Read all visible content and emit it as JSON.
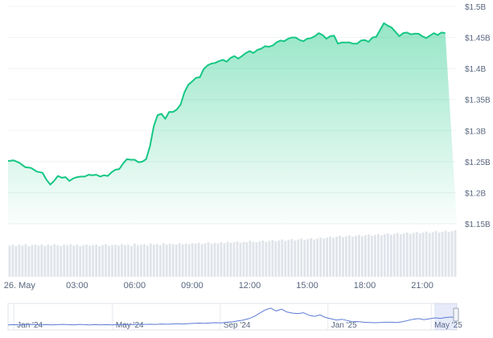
{
  "chart_data": {
    "type": "area",
    "title": "",
    "xlabel": "",
    "ylabel": "",
    "y_ticks": [
      "$1.5B",
      "$1.45B",
      "$1.4B",
      "$1.35B",
      "$1.3B",
      "$1.25B",
      "$1.2B",
      "$1.15B"
    ],
    "y_tick_values": [
      1.5,
      1.45,
      1.4,
      1.35,
      1.3,
      1.25,
      1.2,
      1.15
    ],
    "ylim": [
      1.15,
      1.5
    ],
    "x_ticks": [
      "26. May",
      "03:00",
      "06:00",
      "09:00",
      "12:00",
      "15:00",
      "18:00",
      "21:00"
    ],
    "x_tick_hours": [
      0,
      3,
      6,
      9,
      12,
      15,
      18,
      21
    ],
    "xlim_hours": [
      -0.6,
      22.8
    ],
    "series": [
      {
        "values_x_hours": [
          -0.6,
          -0.3,
          0.0,
          0.3,
          0.6,
          0.9,
          1.2,
          1.4,
          1.6,
          1.8,
          2.0,
          2.2,
          2.4,
          2.6,
          2.8,
          3.0,
          3.2,
          3.4,
          3.6,
          3.8,
          4.0,
          4.2,
          4.4,
          4.6,
          4.8,
          5.0,
          5.2,
          5.4,
          5.6,
          5.8,
          6.0,
          6.2,
          6.4,
          6.6,
          6.8,
          7.0,
          7.2,
          7.4,
          7.6,
          7.8,
          8.0,
          8.2,
          8.4,
          8.6,
          8.8,
          9.0,
          9.2,
          9.4,
          9.6,
          9.8,
          10.0,
          10.2,
          10.4,
          10.6,
          10.8,
          11.0,
          11.2,
          11.4,
          11.6,
          11.8,
          12.0,
          12.2,
          12.4,
          12.6,
          12.8,
          13.0,
          13.2,
          13.4,
          13.6,
          13.8,
          14.0,
          14.2,
          14.4,
          14.6,
          14.8,
          15.0,
          15.2,
          15.4,
          15.6,
          15.8,
          16.0,
          16.2,
          16.4,
          16.6,
          16.8,
          17.0,
          17.2,
          17.4,
          17.6,
          17.8,
          18.0,
          18.2,
          18.4,
          18.6,
          18.8,
          19.0,
          19.2,
          19.4,
          19.6,
          19.8,
          20.0,
          20.2,
          20.4,
          20.6,
          20.8,
          21.0,
          21.2,
          21.4,
          21.6,
          21.8,
          22.0,
          22.2,
          22.4,
          22.6,
          22.8
        ],
        "values": [
          1.251,
          1.252,
          1.248,
          1.241,
          1.24,
          1.234,
          1.232,
          1.221,
          1.213,
          1.219,
          1.227,
          1.224,
          1.225,
          1.219,
          1.223,
          1.225,
          1.226,
          1.226,
          1.229,
          1.228,
          1.229,
          1.226,
          1.228,
          1.227,
          1.233,
          1.237,
          1.238,
          1.247,
          1.254,
          1.253,
          1.253,
          1.249,
          1.25,
          1.254,
          1.275,
          1.307,
          1.325,
          1.327,
          1.319,
          1.33,
          1.33,
          1.334,
          1.342,
          1.362,
          1.374,
          1.379,
          1.385,
          1.386,
          1.399,
          1.405,
          1.408,
          1.409,
          1.412,
          1.414,
          1.411,
          1.417,
          1.42,
          1.416,
          1.42,
          1.425,
          1.428,
          1.425,
          1.43,
          1.432,
          1.436,
          1.435,
          1.437,
          1.442,
          1.445,
          1.444,
          1.448,
          1.45,
          1.45,
          1.446,
          1.444,
          1.448,
          1.449,
          1.452,
          1.457,
          1.454,
          1.448,
          1.452,
          1.453,
          1.44,
          1.442,
          1.442,
          1.442,
          1.44,
          1.44,
          1.445,
          1.446,
          1.443,
          1.45,
          1.451,
          1.462,
          1.473,
          1.469,
          1.466,
          1.459,
          1.452,
          1.457,
          1.458,
          1.455,
          1.456,
          1.456,
          1.452,
          1.449,
          1.453,
          1.457,
          1.454,
          1.458,
          1.457
        ]
      }
    ],
    "volume_fractions": [
      0.67,
      0.69,
      0.66,
      0.69,
      0.67,
      0.7,
      0.66,
      0.68,
      0.69,
      0.67,
      0.69,
      0.66,
      0.69,
      0.67,
      0.7,
      0.68,
      0.66,
      0.69,
      0.68,
      0.7,
      0.67,
      0.69,
      0.66,
      0.68,
      0.69,
      0.67,
      0.68,
      0.69,
      0.66,
      0.68,
      0.7,
      0.67,
      0.68,
      0.69,
      0.67,
      0.7,
      0.68,
      0.69,
      0.66,
      0.71,
      0.68,
      0.69,
      0.7,
      0.67,
      0.71,
      0.69,
      0.7,
      0.68,
      0.72,
      0.69,
      0.71,
      0.7,
      0.69,
      0.72,
      0.7,
      0.71,
      0.7,
      0.72,
      0.71,
      0.73,
      0.7,
      0.72,
      0.74,
      0.71,
      0.73,
      0.72,
      0.74,
      0.72,
      0.75,
      0.73,
      0.74,
      0.76,
      0.73,
      0.75,
      0.74,
      0.77,
      0.75,
      0.74,
      0.76,
      0.78,
      0.75,
      0.77,
      0.79,
      0.76,
      0.78,
      0.8,
      0.77,
      0.79,
      0.81,
      0.78,
      0.8,
      0.82,
      0.79,
      0.81,
      0.83,
      0.8,
      0.82,
      0.84,
      0.82,
      0.84,
      0.86,
      0.84,
      0.86,
      0.88,
      0.85,
      0.87,
      0.89,
      0.86,
      0.88,
      0.9,
      0.87,
      0.89,
      0.91,
      0.88,
      0.9,
      0.92,
      0.89,
      0.91,
      0.93,
      0.9,
      0.92,
      0.94,
      0.91,
      0.93,
      0.95,
      0.92,
      0.94,
      0.96,
      0.93,
      0.95,
      0.97,
      0.94,
      0.96,
      0.98,
      0.95,
      0.97,
      0.99,
      0.96,
      0.98,
      1.0
    ],
    "navigator": {
      "x_ticks": [
        "Jan '24",
        "May '24",
        "Sep '24",
        "Jan '25",
        "May '25"
      ],
      "history_values": [
        0.16,
        0.17,
        0.16,
        0.17,
        0.18,
        0.17,
        0.16,
        0.17,
        0.16,
        0.17,
        0.18,
        0.17,
        0.16,
        0.18,
        0.17,
        0.16,
        0.17,
        0.16,
        0.17,
        0.16,
        0.18,
        0.17,
        0.18,
        0.17,
        0.19,
        0.18,
        0.19,
        0.18,
        0.2,
        0.19,
        0.2,
        0.21,
        0.2,
        0.22,
        0.23,
        0.24,
        0.23,
        0.25,
        0.26,
        0.25,
        0.28,
        0.3,
        0.34,
        0.38,
        0.45,
        0.55,
        0.7,
        0.85,
        0.93,
        0.8,
        0.88,
        0.75,
        0.7,
        0.68,
        0.72,
        0.6,
        0.55,
        0.62,
        0.5,
        0.44,
        0.38,
        0.42,
        0.36,
        0.3,
        0.31,
        0.28,
        0.27,
        0.26,
        0.27,
        0.28,
        0.28,
        0.27,
        0.3,
        0.36,
        0.42,
        0.45,
        0.4,
        0.44,
        0.48,
        0.46,
        0.5,
        0.52,
        0.48
      ]
    },
    "colors": {
      "line": "#16c784",
      "line_dark": "#0ea156",
      "fill_top": "#16c784",
      "grid": "#eff2f5",
      "tick_text": "#58667e",
      "volume_bar": "#e0e4ea",
      "navigator_line": "#5b7bd5"
    },
    "grid": true
  }
}
